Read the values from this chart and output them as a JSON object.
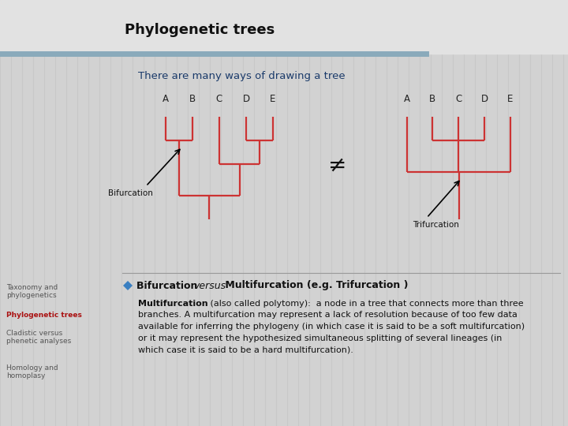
{
  "title": "Phylogenetic trees",
  "subtitle": "There are many ways of drawing a tree",
  "bg_color": "#d2d2d2",
  "header_bg": "#e8e8e8",
  "tree_color": "#cc3333",
  "tree_lw": 1.6,
  "not_equal": "≠",
  "labels": [
    "A",
    "B",
    "C",
    "D",
    "E"
  ],
  "stripe_color": "#8aaabb",
  "title_color": "#111111",
  "sidebar_active_color": "#aa1111",
  "sidebar_inactive_color": "#555555",
  "sidebar_items": [
    "Taxonomy and\nphylogenetics",
    "Phylogenetic trees",
    "Cladistic versus\nphenetic analyses",
    "Homology and\nhomoplasy"
  ],
  "bullet_color": "#3a7fc1",
  "body_bold": "Multifurcation",
  "body_rest": " (also called polytomy):  a node in a tree that connects more than three\nbranches. A multifurcation may represent a lack of resolution because of too few data\navailable for inferring the phylogeny (in which case it is said to be a soft multifurcation)\nor it may represent the hypothesized simultaneous splitting of several lineages (in\nwhich case it is said to be a hard multifurcation)."
}
